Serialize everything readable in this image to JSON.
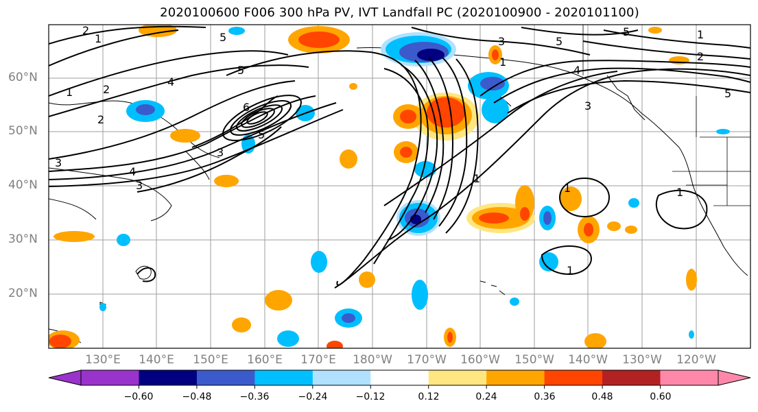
{
  "title": "2020100600 F006 300 hPa PV, IVT Landfall PC (2020100900 - 2020101100)",
  "lat_labels": [
    "60°N",
    "50°N",
    "40°N",
    "30°N",
    "20°N"
  ],
  "lon_labels": [
    "130°E",
    "140°E",
    "150°E",
    "160°E",
    "170°E",
    "180°W",
    "170°W",
    "160°W",
    "150°W",
    "140°W",
    "130°W",
    "120°W"
  ],
  "colorbar": {
    "tick_labels": [
      "−0.60",
      "−0.48",
      "−0.36",
      "−0.24",
      "−0.12",
      "0.12",
      "0.24",
      "0.36",
      "0.48",
      "0.60"
    ],
    "colors": [
      "#9933cc",
      "#000080",
      "#3b5bcc",
      "#00bfff",
      "#b0e2ff",
      "#ffffff",
      "#ffe680",
      "#ffa500",
      "#ff4500",
      "#b22222",
      "#ff88aa"
    ]
  },
  "contour_labels": [
    "2",
    "1",
    "2",
    "2",
    "3",
    "1",
    "4",
    "3",
    "4",
    "5",
    "5",
    "3",
    "3",
    "1",
    "4",
    "5",
    "2",
    "1",
    "5",
    "3",
    "5",
    "6",
    "5",
    "1",
    "1",
    "1",
    "1"
  ]
}
